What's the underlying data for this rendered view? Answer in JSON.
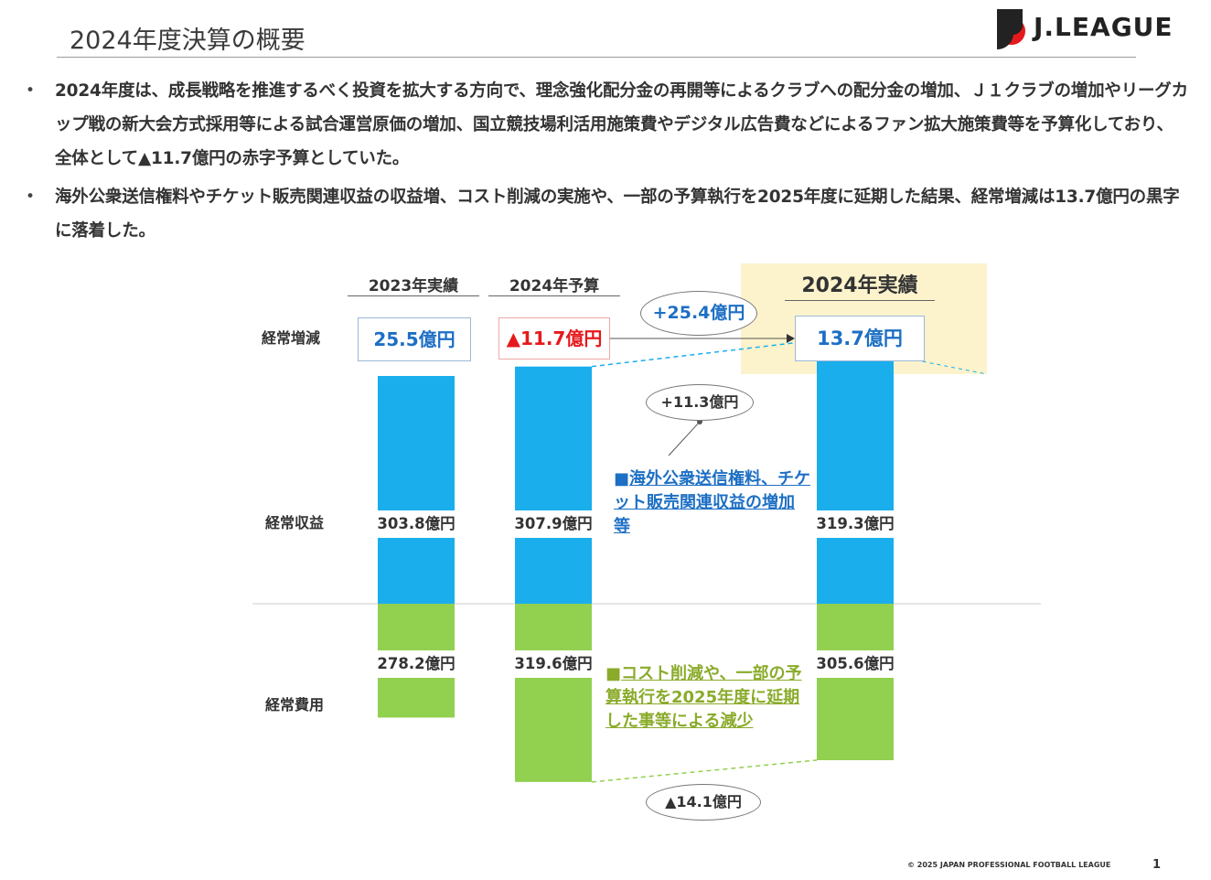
{
  "header": {
    "title": "2024年度決算の概要",
    "logo_text": "J.LEAGUE"
  },
  "bullets": [
    "2024年度は、成長戦略を推進するべく投資を拡大する方向で、理念強化配分金の再開等によるクラブへの配分金の増加、Ｊ１クラブの増加やリーグカップ戦の新大会方式採用等による試合運営原価の増加、国立競技場利活用施策費やデジタル広告費などによるファン拡大施策費等を予算化しており、全体として▲11.7億円の赤字予算としていた。",
    "海外公衆送信権料やチケット販売関連収益の収益増、コスト削減の実施や、一部の予算執行を2025年度に延期した結果、経常増減は13.7億円の黒字に落着した。"
  ],
  "bullet_marker": "•",
  "colors": {
    "revenue": "#1aaeed",
    "expense": "#92d050",
    "positive_text": "#1d6fc4",
    "negative_text": "#e5191d",
    "highlight_bg": "#fcf3cc",
    "expense_note_text": "#8aab2a"
  },
  "chart_data": {
    "type": "bar",
    "categories": [
      "2023年実績",
      "2024年予算",
      "2024年実績"
    ],
    "row_labels": {
      "ordinary_pl": "経常増減",
      "revenue": "経常収益",
      "expense": "経常費用"
    },
    "ordinary_pl": {
      "values": [
        25.5,
        -11.7,
        13.7
      ],
      "labels": [
        "25.5億円",
        "▲11.7億円",
        "13.7億円"
      ]
    },
    "series": [
      {
        "key": "revenue",
        "values": [
          303.8,
          307.9,
          319.3
        ],
        "labels": [
          "303.8億円",
          "307.9億円",
          "319.3億円"
        ]
      },
      {
        "key": "expense",
        "values": [
          278.2,
          319.6,
          305.6
        ],
        "labels": [
          "278.2億円",
          "319.6億円",
          "305.6億円"
        ]
      }
    ],
    "annotations": {
      "pl_change": "+25.4億円",
      "revenue_change": "+11.3億円",
      "expense_change": "▲14.1億円",
      "revenue_note": "海外公衆送信権料、チケット販売関連収益の増加等",
      "expense_note": "コスト削減や、一部の予算執行を2025年度に延期した事等による減少",
      "note_marker": "■"
    },
    "unit": "億円"
  },
  "footer": {
    "copyright": "© 2025 JAPAN PROFESSIONAL FOOTBALL LEAGUE",
    "page_number": "1"
  }
}
